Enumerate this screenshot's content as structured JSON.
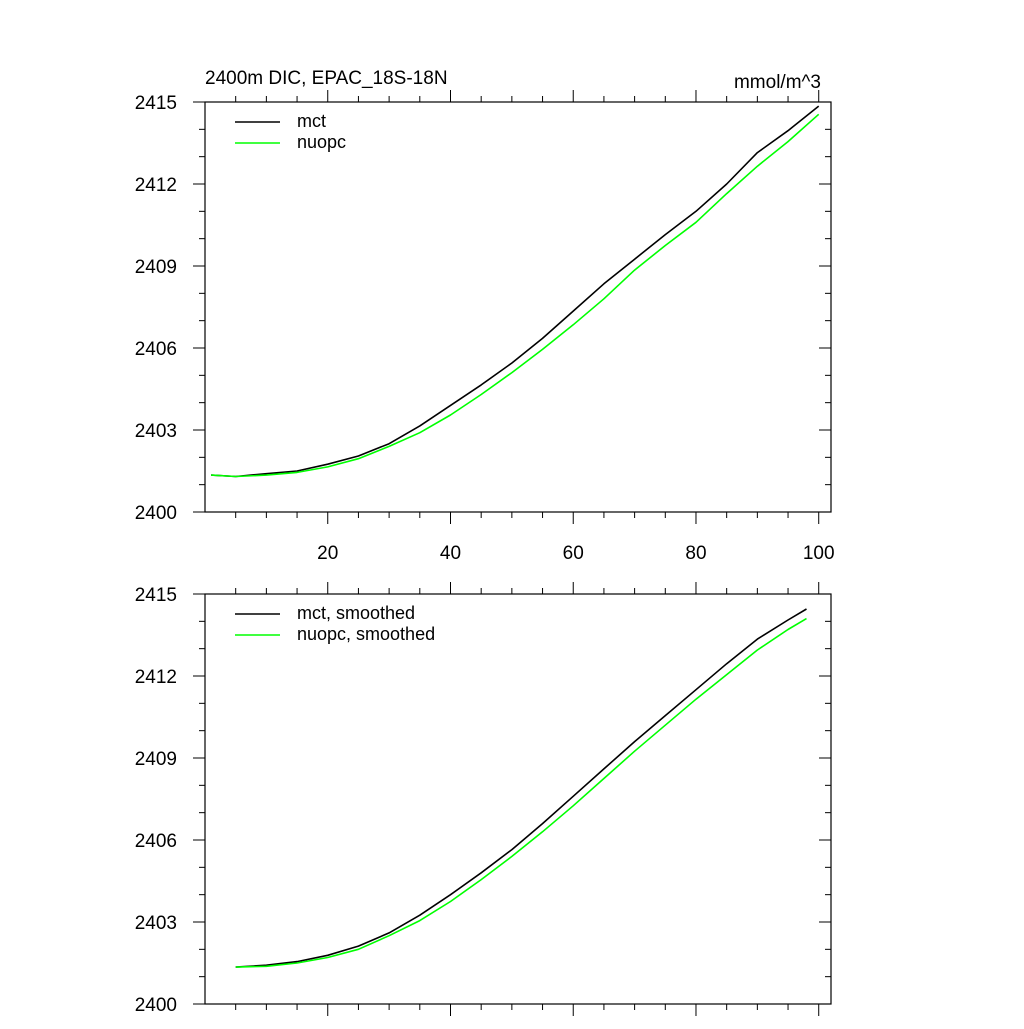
{
  "chart_data": [
    {
      "type": "line",
      "title": "2400m DIC, EPAC_18S-18N",
      "units_label": "mmol/m^3",
      "xlabel": "",
      "ylabel": "",
      "xlim": [
        0,
        102
      ],
      "ylim": [
        2400,
        2415
      ],
      "x_ticks": [
        20,
        40,
        60,
        80,
        100
      ],
      "x_tick_labels": [
        "20",
        "40",
        "60",
        "80",
        "100"
      ],
      "y_ticks": [
        2400,
        2403,
        2406,
        2409,
        2412,
        2415
      ],
      "y_tick_labels": [
        "2400",
        "2403",
        "2406",
        "2409",
        "2412",
        "2415"
      ],
      "legend_position": "top-left",
      "grid": false,
      "series": [
        {
          "name": "mct",
          "color": "#000000",
          "x": [
            1,
            5,
            10,
            15,
            20,
            25,
            30,
            35,
            40,
            45,
            50,
            55,
            60,
            65,
            70,
            75,
            80,
            85,
            90,
            95,
            100
          ],
          "values": [
            2401.35,
            2401.3,
            2401.4,
            2401.5,
            2401.75,
            2402.05,
            2402.5,
            2403.15,
            2403.9,
            2404.65,
            2405.45,
            2406.35,
            2407.35,
            2408.35,
            2409.25,
            2410.15,
            2411.0,
            2412.0,
            2413.15,
            2413.95,
            2414.85
          ]
        },
        {
          "name": "nuopc",
          "color": "#00ff00",
          "x": [
            1,
            5,
            10,
            15,
            20,
            25,
            30,
            35,
            40,
            45,
            50,
            55,
            60,
            65,
            70,
            75,
            80,
            85,
            90,
            95,
            100
          ],
          "values": [
            2401.35,
            2401.3,
            2401.35,
            2401.45,
            2401.65,
            2401.95,
            2402.4,
            2402.9,
            2403.55,
            2404.3,
            2405.1,
            2405.95,
            2406.85,
            2407.8,
            2408.85,
            2409.75,
            2410.6,
            2411.65,
            2412.65,
            2413.55,
            2414.55
          ]
        }
      ]
    },
    {
      "type": "line",
      "title": "",
      "xlabel": "",
      "ylabel": "",
      "xlim": [
        0,
        102
      ],
      "ylim": [
        2400,
        2415
      ],
      "x_ticks": [
        20,
        40,
        60,
        80,
        100
      ],
      "x_tick_labels": [],
      "y_ticks": [
        2400,
        2403,
        2406,
        2409,
        2412,
        2415
      ],
      "y_tick_labels": [
        "2400",
        "2403",
        "2406",
        "2409",
        "2412",
        "2415"
      ],
      "legend_position": "top-left",
      "grid": false,
      "series": [
        {
          "name": "mct, smoothed",
          "color": "#000000",
          "x": [
            5,
            10,
            15,
            20,
            25,
            30,
            35,
            40,
            45,
            50,
            55,
            60,
            65,
            70,
            75,
            80,
            85,
            90,
            95,
            98
          ],
          "values": [
            2401.35,
            2401.42,
            2401.55,
            2401.78,
            2402.12,
            2402.6,
            2403.25,
            2404.0,
            2404.8,
            2405.65,
            2406.6,
            2407.6,
            2408.6,
            2409.6,
            2410.55,
            2411.5,
            2412.45,
            2413.35,
            2414.05,
            2414.45
          ]
        },
        {
          "name": "nuopc, smoothed",
          "color": "#00ff00",
          "x": [
            5,
            10,
            15,
            20,
            25,
            30,
            35,
            40,
            45,
            50,
            55,
            60,
            65,
            70,
            75,
            80,
            85,
            90,
            95,
            98
          ],
          "values": [
            2401.35,
            2401.38,
            2401.5,
            2401.7,
            2402.0,
            2402.5,
            2403.05,
            2403.75,
            2404.55,
            2405.4,
            2406.3,
            2407.25,
            2408.25,
            2409.25,
            2410.2,
            2411.15,
            2412.05,
            2412.95,
            2413.7,
            2414.1
          ]
        }
      ]
    }
  ]
}
